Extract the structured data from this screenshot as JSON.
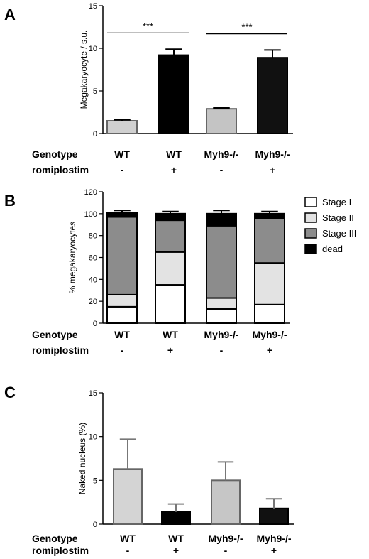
{
  "panels": [
    {
      "letter": "A"
    },
    {
      "letter": "B"
    },
    {
      "letter": "C"
    }
  ],
  "row_labels": {
    "genotype": "Genotype",
    "treatment": "romiplostim"
  },
  "chart_data": [
    {
      "type": "bar",
      "panel": "A",
      "ylabel": "Megakaryocyte / s.u.",
      "ylim": [
        0,
        15
      ],
      "yticks": [
        0,
        5,
        10,
        15
      ],
      "categories": [
        "WT -",
        "WT +",
        "Myh9-/- -",
        "Myh9-/- +"
      ],
      "genotype": [
        "WT",
        "WT",
        "Myh9-/-",
        "Myh9-/-"
      ],
      "treatment": [
        "-",
        "+",
        "-",
        "+"
      ],
      "values": [
        1.5,
        9.2,
        2.9,
        8.9
      ],
      "errors": [
        0.1,
        0.7,
        0.1,
        0.9
      ],
      "colors": [
        "#d0d0d0",
        "#000000",
        "#c4c4c4",
        "#111111"
      ],
      "significance": [
        {
          "from": 0,
          "to": 1,
          "label": "***"
        },
        {
          "from": 2,
          "to": 3,
          "label": "***"
        }
      ]
    },
    {
      "type": "bar",
      "stacked": true,
      "panel": "B",
      "ylabel": "% megakaryocytes",
      "ylim": [
        0,
        120
      ],
      "yticks": [
        0,
        20,
        40,
        60,
        80,
        100,
        120
      ],
      "categories": [
        "WT -",
        "WT +",
        "Myh9-/- -",
        "Myh9-/- +"
      ],
      "genotype": [
        "WT",
        "WT",
        "Myh9-/-",
        "Myh9-/-"
      ],
      "treatment": [
        "-",
        "+",
        "-",
        "+"
      ],
      "legend_position": "right",
      "series": [
        {
          "name": "Stage I",
          "color": "#ffffff",
          "values": [
            15,
            35,
            13,
            17
          ],
          "errors": [
            1.5,
            8,
            1.5,
            2.5
          ]
        },
        {
          "name": "Stage II",
          "color": "#e3e3e3",
          "values": [
            11,
            30,
            10,
            38
          ],
          "errors": [
            1.5,
            5,
            2,
            2
          ]
        },
        {
          "name": "Stage III",
          "color": "#8c8c8c",
          "values": [
            71,
            29,
            66,
            41
          ],
          "errors": [
            1,
            2,
            1,
            1.5
          ]
        },
        {
          "name": "dead",
          "color": "#000000",
          "values": [
            4,
            6,
            11,
            4
          ],
          "errors": [
            2,
            2,
            3,
            2
          ]
        }
      ]
    },
    {
      "type": "bar",
      "panel": "C",
      "ylabel": "Naked nucleus (%)",
      "ylim": [
        0,
        15
      ],
      "yticks": [
        0,
        5,
        10,
        15
      ],
      "categories": [
        "WT -",
        "WT +",
        "Myh9-/- -",
        "Myh9-/- +"
      ],
      "genotype": [
        "WT",
        "WT",
        "Myh9-/-",
        "Myh9-/-"
      ],
      "treatment": [
        "-",
        "+",
        "-",
        "+"
      ],
      "values": [
        6.3,
        1.4,
        5.0,
        1.8
      ],
      "errors": [
        3.4,
        0.9,
        2.1,
        1.1
      ],
      "colors": [
        "#d4d4d4",
        "#000000",
        "#c6c6c6",
        "#111111"
      ],
      "error_color": "#777777"
    }
  ]
}
